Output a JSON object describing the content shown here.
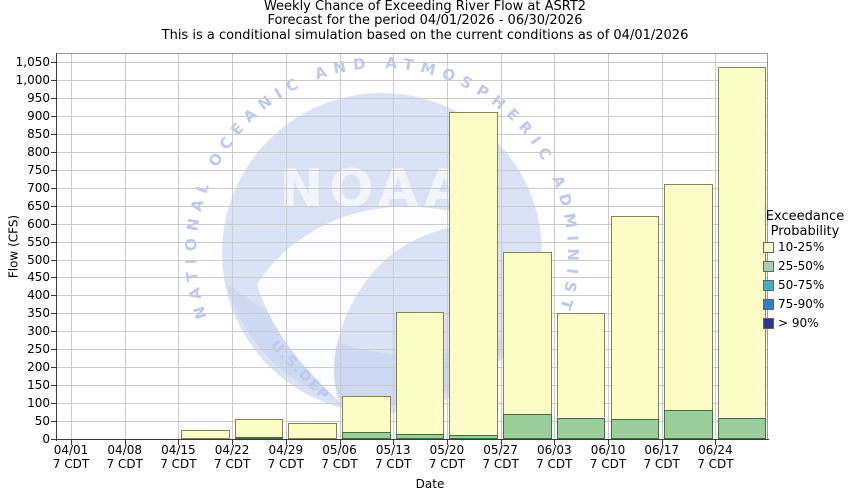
{
  "title": {
    "line1": "Weekly Chance of Exceeding River Flow at ASRT2",
    "line2": "Forecast for the period 04/01/2026 - 06/30/2026",
    "line3": "This is a conditional simulation based on the current conditions as of 04/01/2026"
  },
  "axes": {
    "ylabel": "Flow (CFS)",
    "xlabel": "Date",
    "xtick_sub": "7 CDT",
    "ytick_labels": [
      "0",
      "50",
      "100",
      "150",
      "200",
      "250",
      "300",
      "350",
      "400",
      "450",
      "500",
      "550",
      "600",
      "650",
      "700",
      "750",
      "800",
      "850",
      "900",
      "950",
      "1,000",
      "1,050"
    ]
  },
  "watermark": {
    "arc_text": "NATIONAL OCEANIC AND ATMOSPHERIC ADMINISTRATION",
    "center_text": "NOAA",
    "bottom_text": "U.S.DEP"
  },
  "legend": {
    "title_line1": "Exceedance",
    "title_line2": "Probability",
    "items": [
      {
        "label": "10-25%",
        "color": "#FBFBC6"
      },
      {
        "label": "25-50%",
        "color": "#A4D2A4"
      },
      {
        "label": "50-75%",
        "color": "#46B1BE"
      },
      {
        "label": "75-90%",
        "color": "#2F80C2"
      },
      {
        "label": "> 90%",
        "color": "#2A3696"
      }
    ]
  },
  "chart_data": {
    "type": "bar",
    "stacked": true,
    "stack_order": "bottom-to-top",
    "title": "Weekly Chance of Exceeding River Flow at ASRT2",
    "xlabel": "Date",
    "ylabel": "Flow (CFS)",
    "ylim": [
      0,
      1050
    ],
    "ytick_step": 50,
    "grid": true,
    "legend_position": "right",
    "categories": [
      "04/01",
      "04/08",
      "04/15",
      "04/22",
      "04/29",
      "05/06",
      "05/13",
      "05/20",
      "05/27",
      "06/03",
      "06/10",
      "06/17",
      "06/24"
    ],
    "series": [
      {
        "name": "25-50%",
        "fill": "#9CCE9C",
        "border": "#3F6F3F",
        "values": [
          0,
          0,
          0,
          5,
          0,
          20,
          15,
          10,
          70,
          60,
          55,
          80,
          60
        ]
      },
      {
        "name": "10-25%",
        "fill": "#FCFCC6",
        "border": "#83835A",
        "values": [
          0,
          0,
          25,
          50,
          45,
          100,
          340,
          900,
          450,
          290,
          565,
          630,
          975
        ]
      },
      {
        "name": "50-75%",
        "fill": "#46B1BE",
        "border": "#22626E",
        "values": [
          0,
          0,
          0,
          0,
          0,
          0,
          0,
          0,
          0,
          0,
          0,
          0,
          0
        ]
      },
      {
        "name": "75-90%",
        "fill": "#2F80C2",
        "border": "#1C4E7E",
        "values": [
          0,
          0,
          0,
          0,
          0,
          0,
          0,
          0,
          0,
          0,
          0,
          0,
          0
        ]
      },
      {
        "name": "> 90%",
        "fill": "#2A3696",
        "border": "#141B52",
        "values": [
          0,
          0,
          0,
          0,
          0,
          0,
          0,
          0,
          0,
          0,
          0,
          0,
          0
        ]
      }
    ]
  }
}
